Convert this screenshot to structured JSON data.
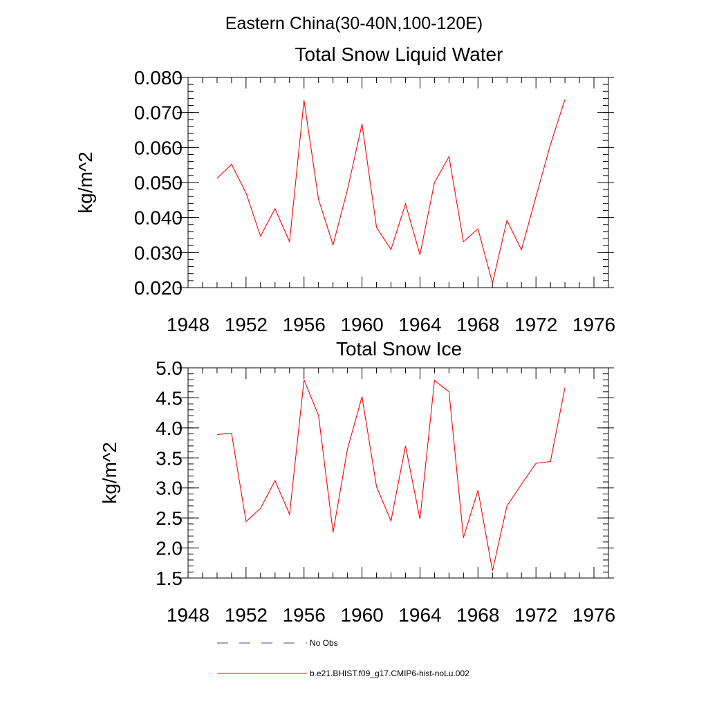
{
  "figure": {
    "suptitle": "Eastern China(30-40N,100-120E)"
  },
  "chart_data": [
    {
      "type": "line",
      "title": "Total Snow Liquid Water",
      "xlabel": "",
      "ylabel": "kg/m^2",
      "xlim": [
        1948,
        1977
      ],
      "ylim": [
        0.02,
        0.08
      ],
      "xticks": [
        "1948",
        "1952",
        "1956",
        "1960",
        "1964",
        "1968",
        "1972",
        "1976"
      ],
      "yticks": [
        "0.020",
        "0.030",
        "0.040",
        "0.050",
        "0.060",
        "0.070",
        "0.080"
      ],
      "series": [
        {
          "name": "b.e21.BHIST.f09_g17.CMIP6-hist-noLu.002",
          "color": "#ff0000",
          "x": [
            1950,
            1951,
            1952,
            1953,
            1954,
            1955,
            1956,
            1957,
            1958,
            1959,
            1960,
            1961,
            1962,
            1963,
            1964,
            1965,
            1966,
            1967,
            1968,
            1969,
            1970,
            1971,
            1972,
            1973,
            1974
          ],
          "y": [
            0.0512,
            0.0552,
            0.047,
            0.0347,
            0.0425,
            0.0331,
            0.0735,
            0.0452,
            0.0322,
            0.048,
            0.0667,
            0.0372,
            0.0309,
            0.0439,
            0.0294,
            0.05,
            0.0574,
            0.0331,
            0.0368,
            0.0213,
            0.0392,
            0.0308,
            0.046,
            0.0608,
            0.0737
          ]
        }
      ]
    },
    {
      "type": "line",
      "title": "Total Snow Ice",
      "xlabel": "",
      "ylabel": "kg/m^2",
      "xlim": [
        1948,
        1977
      ],
      "ylim": [
        1.5,
        5.0
      ],
      "xticks": [
        "1948",
        "1952",
        "1956",
        "1960",
        "1964",
        "1968",
        "1972",
        "1976"
      ],
      "yticks": [
        "1.5",
        "2.0",
        "2.5",
        "3.0",
        "3.5",
        "4.0",
        "4.5",
        "5.0"
      ],
      "series": [
        {
          "name": "b.e21.BHIST.f09_g17.CMIP6-hist-noLu.002",
          "color": "#ff0000",
          "x": [
            1950,
            1951,
            1952,
            1953,
            1954,
            1955,
            1956,
            1957,
            1958,
            1959,
            1960,
            1961,
            1962,
            1963,
            1964,
            1965,
            1966,
            1967,
            1968,
            1969,
            1970,
            1971,
            1972,
            1973,
            1974
          ],
          "y": [
            3.89,
            3.91,
            2.44,
            2.66,
            3.12,
            2.56,
            4.8,
            4.21,
            2.26,
            3.65,
            4.52,
            3.02,
            2.45,
            3.7,
            2.48,
            4.79,
            4.6,
            2.17,
            2.96,
            1.62,
            2.7,
            3.06,
            3.41,
            3.44,
            4.67
          ]
        }
      ]
    }
  ],
  "legend": {
    "items": [
      {
        "label": "No Obs",
        "style": "dashed",
        "color": "#4a4a8a"
      },
      {
        "label": "b.e21.BHIST.f09_g17.CMIP6-hist-noLu.002",
        "style": "solid",
        "color": "#ff0000"
      }
    ]
  }
}
